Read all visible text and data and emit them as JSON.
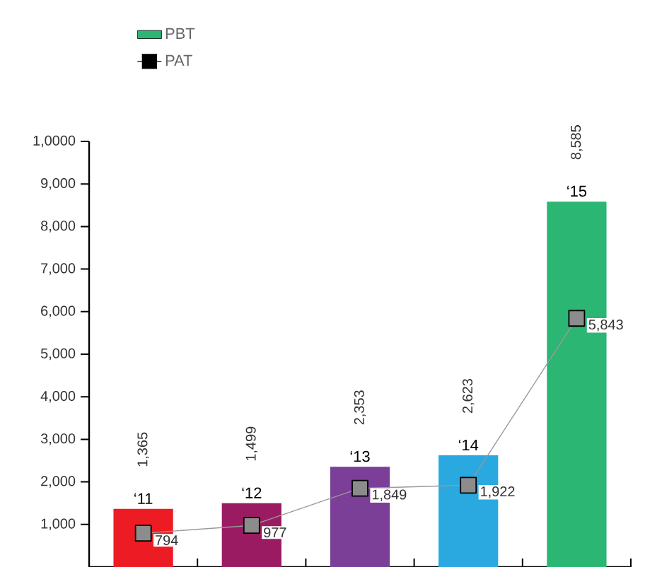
{
  "chart_data": {
    "type": "bar",
    "categories": [
      "‘11",
      "‘12",
      "‘13",
      "‘14",
      "‘15"
    ],
    "series": [
      {
        "name": "PBT",
        "color": "#2bb673",
        "colors": [
          "#ed1c24",
          "#9b1b63",
          "#7b3f98",
          "#29a9e0",
          "#2bb673"
        ],
        "values": [
          1365,
          1499,
          2353,
          2623,
          8585
        ],
        "value_labels": [
          "1,365",
          "1,499",
          "2,353",
          "2,623",
          "8,585"
        ]
      },
      {
        "name": "PAT",
        "type": "line",
        "color": "#999999",
        "marker": "square",
        "values": [
          794,
          977,
          1849,
          1922,
          5843
        ],
        "value_labels": [
          "794",
          "977",
          "1,849",
          "1,922",
          "5,843"
        ]
      }
    ],
    "ylim": [
      0,
      10000
    ],
    "yticks": [
      {
        "value": 1000,
        "label": "1,000"
      },
      {
        "value": 2000,
        "label": "2,000"
      },
      {
        "value": 3000,
        "label": "3,000"
      },
      {
        "value": 4000,
        "label": "4,000"
      },
      {
        "value": 5000,
        "label": "5,000"
      },
      {
        "value": 6000,
        "label": "6,000"
      },
      {
        "value": 7000,
        "label": "7,000"
      },
      {
        "value": 8000,
        "label": "8,000"
      },
      {
        "value": 9000,
        "label": "9,000"
      },
      {
        "value": 10000,
        "label": "1,0000"
      }
    ],
    "grid": false,
    "legend": "top left"
  }
}
